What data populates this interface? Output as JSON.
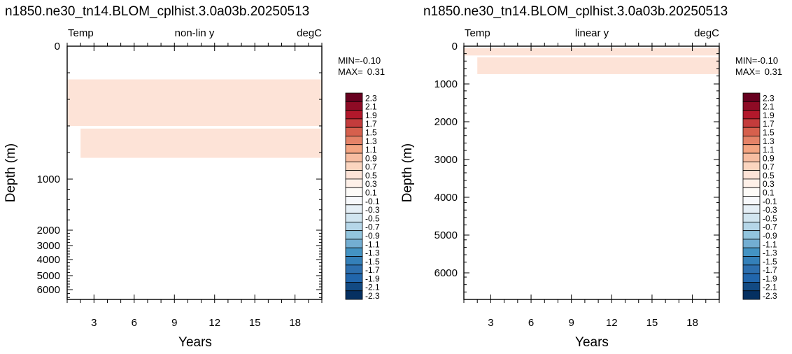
{
  "chart_data": [
    {
      "type": "heatmap",
      "title": "n1850.ne30_tn14.BLOM_cplhist.3.0a03b.20250513",
      "left_label": "Temp",
      "center_label": "non-lin y",
      "right_label": "degC",
      "xlabel": "Years",
      "ylabel": "Depth (m)",
      "x_ticks": [
        3,
        6,
        9,
        12,
        15,
        18
      ],
      "xlim": [
        1,
        20
      ],
      "y_scale": "non-linear",
      "y_tick_labels": [
        "0",
        "1000",
        "2000",
        "3000",
        "4000",
        "5000",
        "6000"
      ],
      "ylim": [
        0,
        6500
      ],
      "min_label": "MIN=",
      "min_value": "-0.10",
      "max_label": "MAX=",
      "max_value": "0.31",
      "shaded_regions": [
        {
          "level": "0.1 to 0.3",
          "color": "#fde3d7",
          "x_range": [
            1,
            20
          ],
          "depth_range": [
            250,
            600
          ]
        },
        {
          "level": "0.1 to 0.3",
          "color": "#fde3d7",
          "x_range": [
            2,
            20
          ],
          "depth_range": [
            620,
            840
          ]
        }
      ]
    },
    {
      "type": "heatmap",
      "title": "n1850.ne30_tn14.BLOM_cplhist.3.0a03b.20250513",
      "left_label": "Temp",
      "center_label": "linear y",
      "right_label": "degC",
      "xlabel": "Years",
      "ylabel": "Depth (m)",
      "x_ticks": [
        3,
        6,
        9,
        12,
        15,
        18
      ],
      "xlim": [
        1,
        20
      ],
      "y_scale": "linear",
      "y_tick_labels": [
        "0",
        "1000",
        "2000",
        "3000",
        "4000",
        "5000",
        "6000"
      ],
      "ylim": [
        0,
        6800
      ],
      "min_label": "MIN=",
      "min_value": "-0.10",
      "max_label": "MAX=",
      "max_value": "0.31",
      "shaded_regions": [
        {
          "level": "0.1 to 0.3",
          "color": "#fde3d7",
          "x_range": [
            1,
            20
          ],
          "depth_range": [
            50,
            250
          ]
        },
        {
          "level": "0.1 to 0.3",
          "color": "#fde3d7",
          "x_range": [
            2,
            20
          ],
          "depth_range": [
            300,
            750
          ]
        }
      ]
    }
  ],
  "colorbar": {
    "labels": [
      "2.3",
      "2.1",
      "1.9",
      "1.7",
      "1.5",
      "1.3",
      "1.1",
      "0.9",
      "0.7",
      "0.5",
      "0.3",
      "0.1",
      "-0.1",
      "-0.3",
      "-0.5",
      "-0.7",
      "-0.9",
      "-1.1",
      "-1.3",
      "-1.5",
      "-1.7",
      "-1.9",
      "-2.1",
      "-2.3"
    ],
    "colors": [
      "#67001f",
      "#8e0b25",
      "#b2182b",
      "#c43c3c",
      "#d6604d",
      "#e58368",
      "#f4a582",
      "#f7bda1",
      "#fbd5bf",
      "#fde3d7",
      "#fef0e8",
      "#fdfbf8",
      "#f7f9fc",
      "#e5eff6",
      "#d1e5f0",
      "#b5d6e8",
      "#92c5de",
      "#73aed2",
      "#4393c3",
      "#3480b9",
      "#2d6fae",
      "#2166ac",
      "#124a83",
      "#053061"
    ]
  }
}
